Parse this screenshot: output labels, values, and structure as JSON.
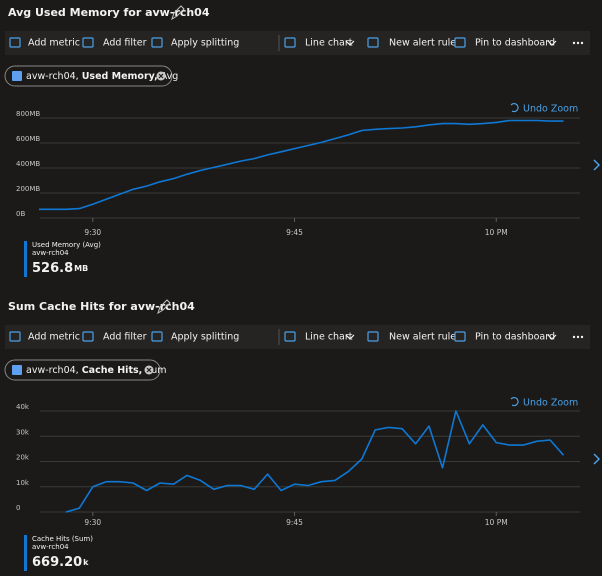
{
  "panels": [
    {
      "title": "Avg Used Memory for avw-rch04",
      "toolbar": [
        "Add metric",
        "Add filter",
        "Apply splitting",
        "Line chart",
        "New alert rule",
        "Pin to dashboard"
      ],
      "pill": [
        "avw-rch04,",
        "Used Memory,",
        "Avg"
      ],
      "undo": "Undo Zoom",
      "summary": {
        "metric": "Used Memory (Avg)",
        "resource": "avw-rch04",
        "value": "526.8",
        "unit": "MB"
      }
    },
    {
      "title": "Sum Cache Hits for avw-rch04",
      "toolbar": [
        "Add metric",
        "Add filter",
        "Apply splitting",
        "Line chart",
        "New alert rule",
        "Pin to dashboard"
      ],
      "pill": [
        "avw-rch04,",
        "Cache Hits,",
        "Sum"
      ],
      "undo": "Undo Zoom",
      "summary": {
        "metric": "Cache Hits (Sum)",
        "resource": "avw-rch04",
        "value": "669.20",
        "unit": "k"
      }
    }
  ],
  "chart_data": [
    {
      "type": "line",
      "color": "#0f78d4",
      "categories": [
        null,
        null,
        null,
        null,
        "9:30",
        null,
        null,
        null,
        null,
        null,
        null,
        null,
        null,
        null,
        null,
        null,
        null,
        null,
        null,
        "9:45",
        null,
        null,
        null,
        null,
        null,
        null,
        null,
        null,
        null,
        null,
        null,
        null,
        null,
        null,
        "10 PM",
        null,
        null,
        null,
        null,
        null
      ],
      "values": [
        70,
        70,
        70,
        75,
        110,
        150,
        190,
        230,
        255,
        290,
        315,
        350,
        380,
        405,
        430,
        455,
        475,
        505,
        530,
        555,
        580,
        605,
        635,
        665,
        700,
        710,
        715,
        720,
        730,
        745,
        755,
        755,
        750,
        755,
        765,
        780,
        780,
        780,
        775,
        775
      ],
      "ylim": [
        0,
        800
      ],
      "yticks": [
        {
          "value": 0,
          "label": "0B"
        },
        {
          "value": 200,
          "label": "200MB"
        },
        {
          "value": 400,
          "label": "400MB"
        },
        {
          "value": 600,
          "label": "600MB"
        },
        {
          "value": 800,
          "label": "800MB"
        }
      ],
      "grid": true
    },
    {
      "type": "line",
      "color": "#0f78d4",
      "categories": [
        null,
        null,
        null,
        null,
        "9:30",
        null,
        null,
        null,
        null,
        null,
        null,
        null,
        null,
        null,
        null,
        null,
        null,
        null,
        null,
        "9:45",
        null,
        null,
        null,
        null,
        null,
        null,
        null,
        null,
        null,
        null,
        null,
        null,
        null,
        null,
        "10 PM",
        null,
        null,
        null,
        null,
        null
      ],
      "values": [
        null,
        null,
        0,
        1500,
        10000,
        12000,
        12000,
        11500,
        8500,
        11500,
        11000,
        14500,
        12500,
        9000,
        10500,
        10500,
        9000,
        15000,
        8500,
        11000,
        10500,
        12000,
        12500,
        16000,
        21000,
        32500,
        33500,
        33000,
        27000,
        34000,
        17500,
        40000,
        27000,
        34500,
        27500,
        26500,
        26500,
        28000,
        28500,
        22500
      ],
      "ylim": [
        0,
        40000
      ],
      "yticks": [
        0,
        {
          "value": 10000,
          "label": "10k"
        },
        {
          "value": 20000,
          "label": "20k"
        },
        {
          "value": 30000,
          "label": "30k"
        },
        {
          "value": 40000,
          "label": "40k"
        }
      ],
      "grid": true
    }
  ]
}
